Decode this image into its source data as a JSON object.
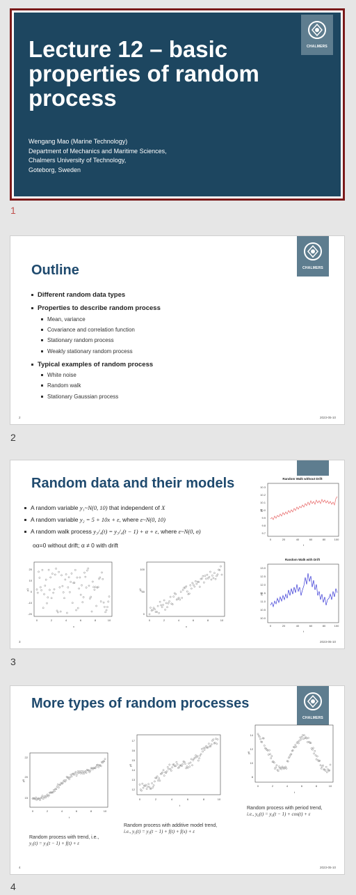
{
  "slides": [
    {
      "number": "1",
      "title_lines": [
        "Lecture 12 – basic",
        "properties of random",
        "process"
      ],
      "author_lines": [
        "Wengang Mao (Marine Technology)",
        "Department of Mechanics and Maritime Sciences,",
        "Chalmers University of Technology,",
        "Goteborg, Sweden"
      ],
      "logo_text": "CHALMERS"
    },
    {
      "number": "2",
      "title": "Outline",
      "logo_text": "CHALMERS",
      "bullets": [
        {
          "text": "Different random data types",
          "subs": []
        },
        {
          "text": "Properties to describe random process",
          "subs": [
            "Mean, variance",
            "Covariance and correlation function",
            "Stationary random process",
            "Weakly stationary random process"
          ]
        },
        {
          "text": "Typical examples of random process",
          "subs": [
            "White noise",
            "Random walk",
            "Stationary Gaussian process"
          ]
        }
      ],
      "footer_left": "2",
      "footer_right": "2023-05-10"
    },
    {
      "number": "3",
      "title": "Random data and their models",
      "bullets": [
        {
          "prefix": "A random variable ",
          "math": "y₁~N(0, 10)",
          "suffix": " that independent of ",
          "math2": "X"
        },
        {
          "prefix": "A random variable ",
          "math": "y₂ = 5 + 10x + ε",
          "suffix": ", where ",
          "math2": "ε~N(0, 10)"
        },
        {
          "prefix": "A random walk process ",
          "math": "y₃/₄(t) = y₃/₄(t − 1) + α + ε",
          "suffix": ", where ",
          "math2": "ε~N(0, σ)"
        }
      ],
      "drift_note": "oα=0 without drift;  α ≠ 0 with drift",
      "plot_titles": [
        "Random Walk without Drift",
        "Random Walk with Drift"
      ],
      "footer_left": "3",
      "footer_right": "2023-05-10"
    },
    {
      "number": "4",
      "title": "More types of random processes",
      "logo_text": "CHALMERS",
      "captions": [
        {
          "line1": "Random process with trend, i.e.,",
          "line2": "y₅(t) = y₅(t − 1) + f(t) + ε"
        },
        {
          "line1": "Random process with additive model trend,",
          "line2": "i.e., y₅(t) = y₅(t − 1) + f(t) + f(x) + ε"
        },
        {
          "line1": "Random process with period trend,",
          "line2": "i.e., y₆(t) = y₆(t − 1) + cos(t) + ε"
        }
      ],
      "footer_left": "4",
      "footer_right": "2023-05-10"
    }
  ],
  "colors": {
    "title_slide_bg": "#1d4660",
    "selected_border": "#7a1a1a",
    "heading": "#1f4a6e",
    "logo_bg": "#5e7d8f",
    "walk_no_drift": "#e86a6a",
    "walk_drift": "#3b3bd6"
  }
}
